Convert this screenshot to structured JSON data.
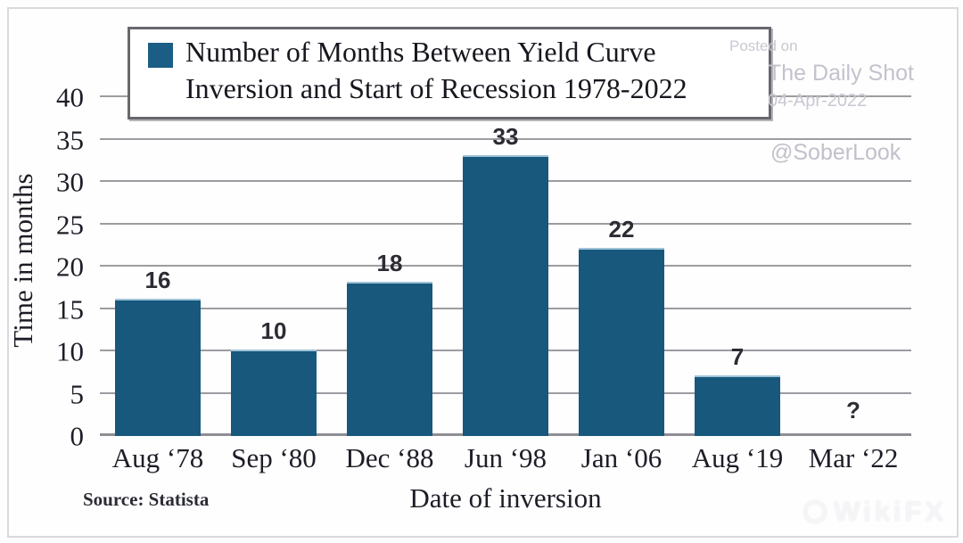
{
  "chart_data": {
    "type": "bar",
    "title": "Number of Months Between Yield Curve Inversion and Start of Recession 1978-2022",
    "legend_line1": "Number of Months Between Yield Curve",
    "legend_line2": "Inversion and Start of Recession 1978-2022",
    "categories": [
      "Aug ‘78",
      "Sep ‘80",
      "Dec ‘88",
      "Jun ‘98",
      "Jan ‘06",
      "Aug ‘19",
      "Mar ‘22"
    ],
    "values": [
      16,
      10,
      18,
      33,
      22,
      7,
      null
    ],
    "bar_labels": [
      "16",
      "10",
      "18",
      "33",
      "22",
      "7",
      "?"
    ],
    "xlabel": "Date of inversion",
    "ylabel": "Time in months",
    "ylim": [
      0,
      40
    ],
    "yticks": [
      0,
      5,
      10,
      15,
      20,
      25,
      30,
      35,
      40
    ],
    "grid": "horizontal",
    "legend_position": "top-left-box",
    "source": "Source: Statista",
    "bar_color": "#17587C"
  },
  "watermarks": {
    "posted_on": "Posted on",
    "site": "The Daily Shot",
    "date": "04-Apr-2022",
    "handle": "@SoberLook",
    "logo_text": "WikiFX"
  },
  "colors": {
    "bar": "#17587C",
    "legend_swatch": "#1b5d85",
    "grid": "#9c9ca1",
    "text": "#1e1e28",
    "watermark": "#c2c3cc",
    "logo_watermark": "#f5f5f8"
  }
}
